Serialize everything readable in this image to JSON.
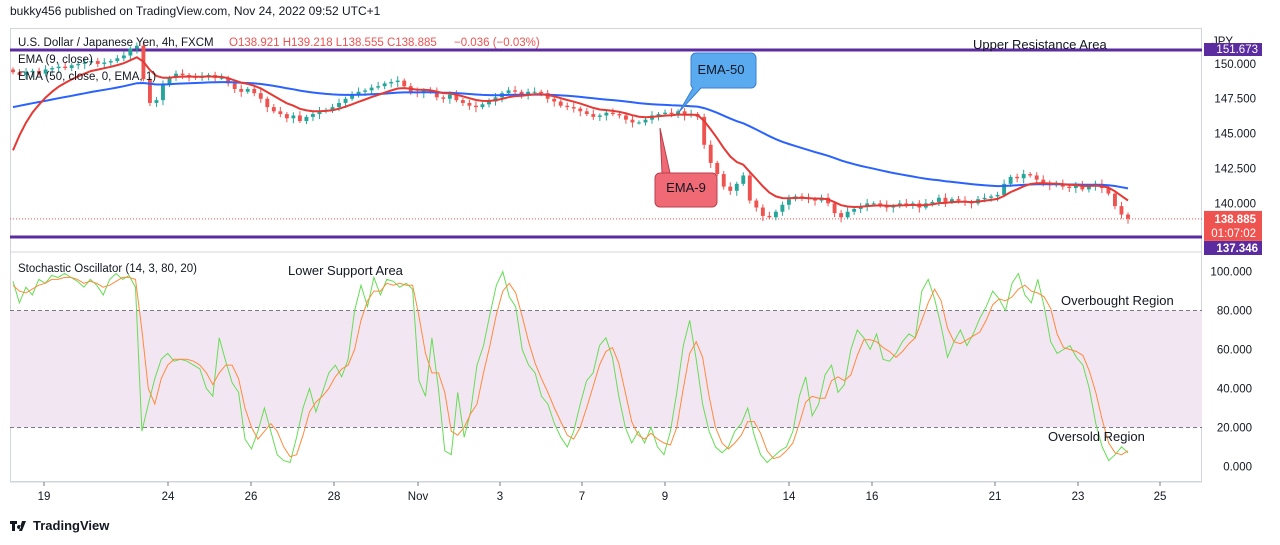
{
  "header": {
    "publish_line": "bukky456 published on TradingView.com, Nov 24, 2022 09:52 UTC+1"
  },
  "legend": {
    "symbol": "U.S. Dollar / Japanese Yen, 4h, FXCM",
    "ohlc": "O138.921 H139.218 L138.555 C138.885",
    "change": "−0.036 (−0.03%)",
    "ema9": "EMA (9, close)",
    "ema50": "EMA (50, close, 0, EMA, 1)",
    "stoch": "Stochastic Oscillator (14, 3, 80, 20)"
  },
  "annotations": {
    "upper": "Upper Resistance Area",
    "lower": "Lower Support Area",
    "ema50": "EMA-50",
    "ema9": "EMA-9",
    "overbought": "Overbought Region",
    "oversold": "Oversold Region"
  },
  "price_axis": {
    "currency": "JPY",
    "last_price": "138.885",
    "countdown": "01:07:02",
    "support_label": "137.346",
    "resistance_label": "151.673"
  },
  "colors": {
    "bull": "#26a69a",
    "bear": "#ef5350",
    "ema9": "#e53935",
    "ema50": "#2962ff",
    "level": "#5b2c9f",
    "stoch_k": "#66dd55",
    "stoch_d": "#ff8a3d",
    "band": "#f3e6f3"
  },
  "footer": {
    "brand": "TradingView"
  },
  "chart_data": [
    {
      "type": "candlestick",
      "title": "U.S. Dollar / Japanese Yen, 4h, FXCM",
      "y_unit": "JPY",
      "ylim": [
        136.8,
        152.5
      ],
      "y_ticks": [
        140.0,
        142.5,
        145.0,
        147.5,
        150.0
      ],
      "x_ticks": [
        "19",
        "24",
        "26",
        "28",
        "Nov",
        "3",
        "7",
        "9",
        "14",
        "16",
        "21",
        "23",
        "25"
      ],
      "horizontal_levels": [
        {
          "name": "Upper Resistance Area",
          "value": 151.673
        },
        {
          "name": "Lower Support Area",
          "value": 137.346
        }
      ],
      "last_close": 138.885,
      "close_series": [
        149.4,
        149.2,
        149.4,
        149.5,
        149.3,
        149.6,
        149.7,
        149.8,
        149.7,
        149.9,
        150.0,
        150.1,
        150.2,
        150.0,
        150.1,
        150.2,
        150.4,
        150.6,
        151.1,
        151.3,
        148.9,
        147.2,
        147.4,
        148.5,
        149.0,
        149.3,
        149.2,
        149.1,
        149.0,
        149.1,
        149.2,
        149.0,
        149.0,
        148.6,
        148.2,
        148.0,
        148.2,
        147.9,
        147.5,
        146.9,
        146.6,
        146.4,
        146.1,
        146.3,
        145.9,
        146.2,
        146.4,
        146.6,
        146.7,
        146.9,
        147.2,
        147.5,
        147.8,
        148.0,
        148.1,
        148.3,
        148.4,
        148.6,
        148.7,
        148.8,
        148.4,
        148.0,
        147.9,
        148.1,
        148.0,
        147.6,
        147.5,
        147.8,
        147.4,
        147.2,
        147.0,
        146.9,
        147.1,
        147.3,
        147.6,
        147.9,
        148.1,
        148.0,
        147.8,
        148.0,
        148.0,
        147.9,
        147.5,
        147.3,
        147.0,
        146.9,
        146.8,
        146.6,
        146.4,
        146.2,
        146.3,
        146.5,
        146.4,
        146.3,
        146.0,
        145.8,
        145.8,
        146.0,
        146.3,
        146.4,
        146.5,
        146.4,
        146.6,
        146.3,
        146.4,
        146.2,
        144.2,
        142.9,
        142.1,
        141.2,
        140.9,
        141.4,
        142.0,
        140.2,
        139.7,
        139.1,
        139.0,
        139.4,
        139.9,
        140.3,
        140.5,
        140.4,
        140.3,
        140.2,
        140.4,
        140.0,
        139.3,
        139.0,
        139.4,
        139.6,
        139.8,
        140.0,
        140.0,
        139.9,
        139.7,
        139.8,
        140.0,
        139.9,
        140.0,
        139.7,
        140.0,
        140.1,
        140.4,
        140.1,
        140.3,
        140.2,
        140.1,
        140.0,
        140.3,
        140.4,
        140.5,
        140.6,
        141.4,
        141.9,
        141.8,
        142.1,
        142.0,
        141.7,
        141.5,
        141.3,
        141.4,
        141.2,
        141.1,
        141.3,
        141.0,
        141.2,
        141.4,
        141.1,
        140.7,
        139.8,
        139.2,
        138.9
      ],
      "ema9_series_start": 142.4,
      "ema50_series_start": 146.8
    },
    {
      "type": "line",
      "title": "Stochastic Oscillator (14, 3, 80, 20)",
      "ylim": [
        -8,
        108
      ],
      "y_ticks": [
        0.0,
        20.0,
        40.0,
        60.0,
        80.0,
        100.0
      ],
      "bands": {
        "overbought": 80,
        "oversold": 20
      },
      "series": [
        {
          "name": "%K",
          "values": [
            95,
            84,
            92,
            88,
            96,
            94,
            98,
            97,
            99,
            97,
            95,
            92,
            96,
            93,
            88,
            96,
            99,
            96,
            98,
            92,
            18,
            32,
            45,
            55,
            58,
            54,
            55,
            54,
            52,
            50,
            40,
            36,
            66,
            54,
            43,
            38,
            14,
            9,
            18,
            30,
            18,
            6,
            3,
            2,
            15,
            30,
            40,
            28,
            38,
            48,
            52,
            46,
            55,
            80,
            93,
            82,
            97,
            88,
            96,
            95,
            92,
            94,
            91,
            44,
            36,
            66,
            40,
            8,
            6,
            38,
            15,
            28,
            52,
            62,
            78,
            93,
            100,
            87,
            82,
            60,
            52,
            48,
            36,
            32,
            22,
            15,
            10,
            18,
            32,
            44,
            48,
            62,
            66,
            56,
            36,
            20,
            12,
            18,
            12,
            20,
            10,
            6,
            18,
            38,
            62,
            75,
            55,
            32,
            18,
            10,
            7,
            10,
            18,
            22,
            30,
            16,
            6,
            2,
            5,
            8,
            10,
            18,
            36,
            46,
            26,
            32,
            47,
            52,
            38,
            42,
            60,
            70,
            66,
            60,
            68,
            55,
            54,
            58,
            64,
            68,
            66,
            90,
            96,
            86,
            72,
            56,
            64,
            70,
            62,
            68,
            76,
            82,
            90,
            86,
            80,
            94,
            99,
            88,
            84,
            96,
            82,
            64,
            58,
            60,
            62,
            56,
            52,
            40,
            22,
            10,
            3,
            6,
            10,
            7
          ]
        },
        {
          "name": "%D",
          "values": [
            93,
            90,
            89,
            91,
            93,
            94,
            96,
            96,
            97,
            97,
            96,
            94,
            95,
            94,
            92,
            93,
            95,
            97,
            97,
            96,
            70,
            40,
            32,
            45,
            52,
            55,
            55,
            55,
            54,
            52,
            48,
            42,
            48,
            52,
            52,
            45,
            30,
            20,
            14,
            18,
            22,
            18,
            10,
            5,
            6,
            16,
            28,
            33,
            36,
            40,
            46,
            50,
            52,
            60,
            75,
            85,
            90,
            90,
            94,
            93,
            94,
            93,
            93,
            77,
            58,
            48,
            48,
            38,
            18,
            16,
            20,
            27,
            32,
            48,
            62,
            78,
            90,
            94,
            89,
            77,
            64,
            53,
            45,
            38,
            30,
            23,
            16,
            14,
            20,
            30,
            41,
            52,
            59,
            61,
            53,
            38,
            23,
            16,
            14,
            17,
            14,
            12,
            11,
            20,
            40,
            58,
            64,
            56,
            36,
            20,
            12,
            9,
            12,
            16,
            23,
            23,
            17,
            8,
            4,
            5,
            8,
            12,
            22,
            33,
            36,
            35,
            35,
            44,
            46,
            44,
            47,
            57,
            65,
            65,
            64,
            61,
            59,
            56,
            59,
            63,
            66,
            75,
            84,
            91,
            85,
            71,
            64,
            63,
            65,
            67,
            69,
            75,
            83,
            86,
            85,
            87,
            91,
            93,
            90,
            89,
            87,
            81,
            68,
            61,
            60,
            59,
            57,
            49,
            38,
            24,
            12,
            7,
            6,
            8
          ]
        }
      ]
    }
  ]
}
